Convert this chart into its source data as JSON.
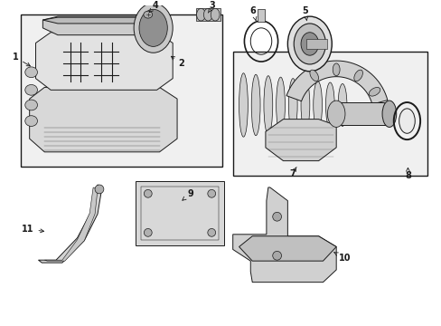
{
  "bg": "#ffffff",
  "lc": "#1a1a1a",
  "gray1": "#e8e8e8",
  "gray2": "#d0d0d0",
  "gray3": "#b8b8b8",
  "gray4": "#a0a0a0",
  "fig_w": 4.89,
  "fig_h": 3.6,
  "dpi": 100
}
